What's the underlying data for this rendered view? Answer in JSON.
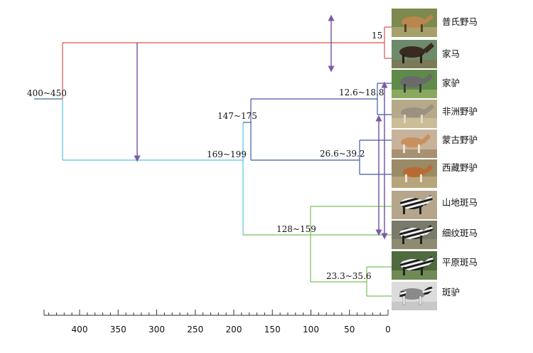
{
  "chart_data": {
    "type": "dendrogram",
    "title": "",
    "xlabel": "",
    "axis_unit": "",
    "x_ticks": [
      400,
      350,
      300,
      250,
      200,
      150,
      100,
      50,
      0
    ],
    "xlim": [
      450,
      0
    ],
    "root_age": "400~450",
    "nodes": [
      {
        "id": "horses",
        "label": "15"
      },
      {
        "id": "asses_pair",
        "label": "12.6~18.8"
      },
      {
        "id": "asian_asses",
        "label": "26.6~39.2"
      },
      {
        "id": "asses",
        "label": "147~175"
      },
      {
        "id": "zebra_root",
        "label": "128~159"
      },
      {
        "id": "zebra_pair",
        "label": "23.3~35.6"
      },
      {
        "id": "non_caballine",
        "label": "169~199"
      }
    ],
    "taxa": [
      {
        "name": "普氏野马",
        "photo": "przewalski-horse-photo"
      },
      {
        "name": "家马",
        "photo": "domestic-horse-photo"
      },
      {
        "name": "家驴",
        "photo": "donkey-photo"
      },
      {
        "name": "非洲野驴",
        "photo": "african-wild-ass-photo"
      },
      {
        "name": "蒙古野驴",
        "photo": "mongolian-wild-ass-photo"
      },
      {
        "name": "西藏野驴",
        "photo": "kiang-photo"
      },
      {
        "name": "山地斑马",
        "photo": "mountain-zebra-photo"
      },
      {
        "name": "细纹斑马",
        "photo": "grevy-zebra-photo"
      },
      {
        "name": "平原斑马",
        "photo": "plains-zebra-photo"
      },
      {
        "name": "斑驴",
        "photo": "quagga-photo"
      }
    ],
    "branch_colors": {
      "root": "#3a6f9e",
      "horse": "#d9534f",
      "non_caballine": "#5bc0de",
      "ass": "#3f5aa8",
      "zebra": "#7cbf5a",
      "arrow": "#7b5aa6"
    }
  }
}
